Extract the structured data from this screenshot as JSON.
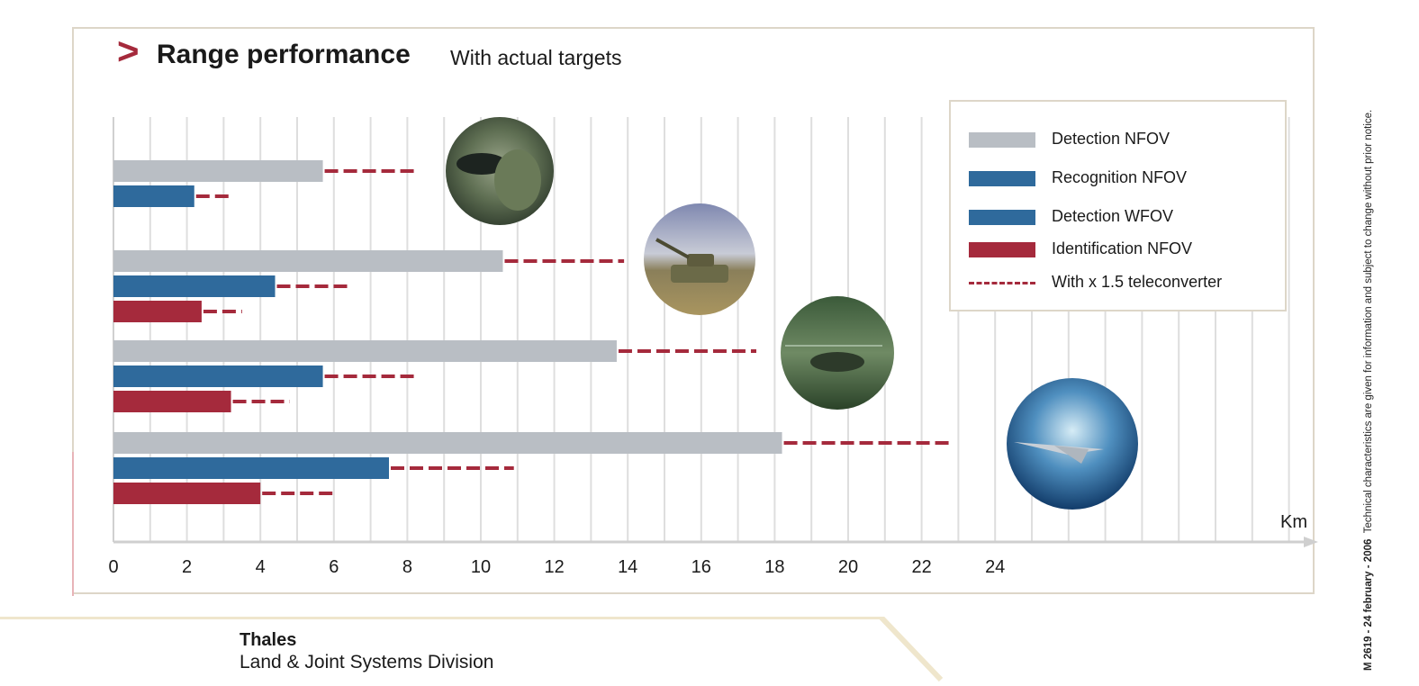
{
  "header": {
    "chevron": ">",
    "title": "Range performance",
    "subtitle": "With actual targets"
  },
  "legend": {
    "items": [
      {
        "label": "Detection NFOV",
        "color": "#b9bec4",
        "style": "bar"
      },
      {
        "label": "Recognition NFOV",
        "color": "#2f6a9c",
        "style": "bar"
      },
      {
        "label": "Detection WFOV",
        "color": "#2f6a9c",
        "style": "bar"
      },
      {
        "label": "Identification NFOV",
        "color": "#a52a3c",
        "style": "bar"
      },
      {
        "label": "With x 1.5 teleconverter",
        "color": "#a52a3c",
        "style": "dashed"
      }
    ]
  },
  "chart_data": {
    "type": "bar",
    "orientation": "horizontal",
    "title": "Range performance",
    "subtitle": "With actual targets",
    "xlabel": "Km",
    "xticks": [
      0,
      2,
      4,
      6,
      8,
      10,
      12,
      14,
      16,
      18,
      20,
      22,
      24
    ],
    "xlim": [
      0,
      32
    ],
    "grid": true,
    "legend_position": "top-right",
    "groups": [
      {
        "target_icon": "soldier-photo",
        "bars": [
          {
            "series": "Detection NFOV",
            "value": 5.7,
            "teleconverter": 8.3
          },
          {
            "series": "Recognition NFOV",
            "value": 2.2,
            "teleconverter": 3.2
          }
        ]
      },
      {
        "target_icon": "tank-photo",
        "bars": [
          {
            "series": "Detection NFOV",
            "value": 10.6,
            "teleconverter": 13.9
          },
          {
            "series": "Recognition NFOV",
            "value": 4.4,
            "teleconverter": 6.5
          },
          {
            "series": "Identification NFOV",
            "value": 2.4,
            "teleconverter": 3.5
          }
        ]
      },
      {
        "target_icon": "helicopter-photo",
        "bars": [
          {
            "series": "Detection NFOV",
            "value": 13.7,
            "teleconverter": 17.5
          },
          {
            "series": "Recognition NFOV",
            "value": 5.7,
            "teleconverter": 8.3
          },
          {
            "series": "Identification NFOV",
            "value": 3.2,
            "teleconverter": 4.8
          }
        ]
      },
      {
        "target_icon": "jet-photo",
        "bars": [
          {
            "series": "Detection NFOV",
            "value": 18.2,
            "teleconverter": 22.8
          },
          {
            "series": "Recognition NFOV",
            "value": 7.5,
            "teleconverter": 10.9
          },
          {
            "series": "Identification NFOV",
            "value": 4.0,
            "teleconverter": 6.1
          }
        ]
      }
    ],
    "colors": {
      "Detection NFOV": "#b9bec4",
      "Recognition NFOV": "#2f6a9c",
      "Detection WFOV": "#2f6a9c",
      "Identification NFOV": "#a52a3c",
      "teleconverter": "#a52a3c"
    }
  },
  "side_note": {
    "ref": "M 2619 - 24 february - 2006",
    "text": "Technical characteristics are given for information and subject to change without prior notice."
  },
  "footer": {
    "company": "Thales",
    "division": "Land & Joint Systems Division"
  }
}
